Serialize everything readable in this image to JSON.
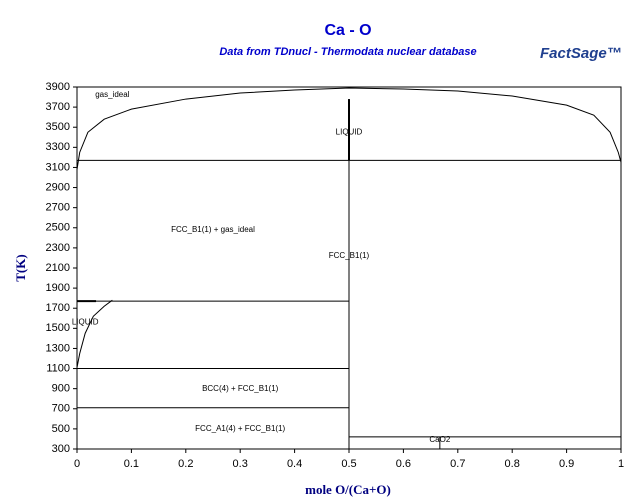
{
  "chart_data": {
    "type": "phase-diagram",
    "title": "Ca - O",
    "subtitle": "Data from TDnucl - Thermodata nuclear database",
    "logo": "FactSage™",
    "x_label": "mole O/(Ca+O)",
    "y_label": "T(K)",
    "xlim": [
      0,
      1
    ],
    "ylim": [
      300,
      3900
    ],
    "xticks": [
      0,
      0.1,
      0.2,
      0.3,
      0.4,
      0.5,
      0.6,
      0.7,
      0.8,
      0.9,
      1
    ],
    "yticks": [
      300,
      500,
      700,
      900,
      1100,
      1300,
      1500,
      1700,
      1900,
      2100,
      2300,
      2500,
      2700,
      2900,
      3100,
      3300,
      3500,
      3700,
      3900
    ],
    "color": "#000000",
    "series": [
      {
        "x": [
          0,
          0.005,
          0.02,
          0.05,
          0.1,
          0.2,
          0.3,
          0.4,
          0.5,
          0.6,
          0.7,
          0.8,
          0.9,
          0.95,
          0.98,
          0.995,
          1
        ],
        "values": [
          3080,
          3250,
          3450,
          3580,
          3680,
          3780,
          3840,
          3870,
          3890,
          3880,
          3860,
          3810,
          3720,
          3620,
          3450,
          3250,
          3150
        ],
        "width": 1
      },
      {
        "x": [
          0,
          1
        ],
        "values": [
          3170,
          3170
        ],
        "width": 1
      },
      {
        "x": [
          0.5,
          0.5
        ],
        "values": [
          300,
          3170
        ],
        "width": 1
      },
      {
        "x": [
          0.5,
          0.5
        ],
        "values": [
          3170,
          3780
        ],
        "width": 2
      },
      {
        "x": [
          0,
          0.5
        ],
        "values": [
          1770,
          1770
        ],
        "width": 1
      },
      {
        "x": [
          0,
          0.035
        ],
        "values": [
          1770,
          1770
        ],
        "width": 2
      },
      {
        "x": [
          0,
          0.005,
          0.015,
          0.03,
          0.05,
          0.065
        ],
        "values": [
          1110,
          1250,
          1450,
          1620,
          1720,
          1780
        ],
        "width": 1
      },
      {
        "x": [
          0,
          0.5
        ],
        "values": [
          1100,
          1100
        ],
        "width": 1
      },
      {
        "x": [
          0,
          0.5
        ],
        "values": [
          710,
          710
        ],
        "width": 1
      },
      {
        "x": [
          0.5,
          1
        ],
        "values": [
          420,
          420
        ],
        "width": 1
      },
      {
        "x": [
          0.667,
          0.667
        ],
        "values": [
          300,
          420
        ],
        "width": 1
      }
    ],
    "annotations": [
      {
        "text": "gas_ideal",
        "x": 0.065,
        "y": 3820
      },
      {
        "text": "LIQUID",
        "x": 0.5,
        "y": 3450
      },
      {
        "text": "FCC_B1(1) + gas_ideal",
        "x": 0.25,
        "y": 2480
      },
      {
        "text": "FCC_B1(1)",
        "x": 0.5,
        "y": 2220
      },
      {
        "text": "LIQUID",
        "x": 0.015,
        "y": 1560
      },
      {
        "text": "BCC(4) + FCC_B1(1)",
        "x": 0.3,
        "y": 900
      },
      {
        "text": "FCC_A1(4) + FCC_B1(1)",
        "x": 0.3,
        "y": 500
      },
      {
        "text": "CaO2",
        "x": 0.667,
        "y": 390
      }
    ]
  }
}
